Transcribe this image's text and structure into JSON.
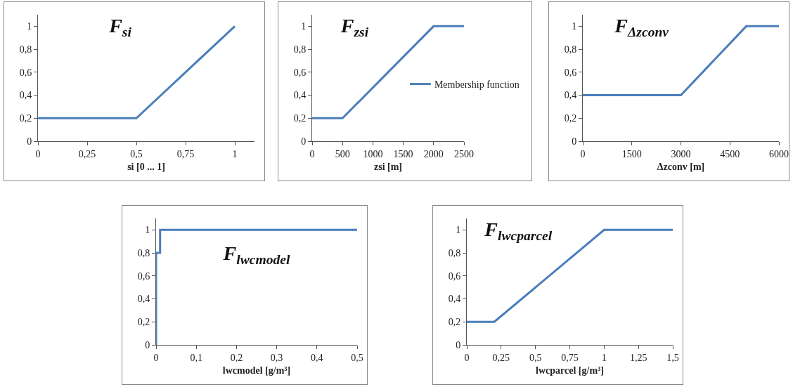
{
  "chart_data": [
    {
      "type": "line",
      "title": "F$_{si}$",
      "xlabel": "si [0 ... 1]",
      "x": [
        0,
        0.5,
        1
      ],
      "series": [
        {
          "color": "#4a7ebb",
          "values": [
            0.2,
            0.2,
            1
          ]
        }
      ],
      "xlim": [
        0,
        1.1
      ],
      "xticks": [
        {
          "value": 0,
          "label": "0"
        },
        {
          "value": 0.25,
          "label": "0,25"
        },
        {
          "value": 0.5,
          "label": "0,5"
        },
        {
          "value": 0.75,
          "label": "0,75"
        },
        {
          "value": 1,
          "label": "1"
        }
      ],
      "ylim": [
        0,
        1.1
      ],
      "yticks": [
        {
          "value": 0,
          "label": "0"
        },
        {
          "value": 0.2,
          "label": "0,2"
        },
        {
          "value": 0.4,
          "label": "0,4"
        },
        {
          "value": 0.6,
          "label": "0,6"
        },
        {
          "value": 0.8,
          "label": "0,8"
        },
        {
          "value": 1,
          "label": "1"
        }
      ],
      "grid": false,
      "legend": false
    },
    {
      "type": "line",
      "title": "F$_{zsi}$",
      "xlabel": "zsi [m]",
      "x": [
        0,
        500,
        2000,
        2500
      ],
      "series": [
        {
          "name": "Membership function",
          "color": "#4a7ebb",
          "values": [
            0.2,
            0.2,
            1,
            1
          ]
        }
      ],
      "xlim": [
        0,
        2500
      ],
      "xticks": [
        {
          "value": 0,
          "label": "0"
        },
        500,
        1000,
        1500,
        2000,
        2500
      ],
      "ylim": [
        0,
        1.1
      ],
      "yticks": [
        {
          "value": 0,
          "label": "0"
        },
        {
          "value": 0.2,
          "label": "0,2"
        },
        {
          "value": 0.4,
          "label": "0,4"
        },
        {
          "value": 0.6,
          "label": "0,6"
        },
        {
          "value": 0.8,
          "label": "0,8"
        },
        {
          "value": 1,
          "label": "1"
        }
      ],
      "grid": false,
      "legend": "right"
    },
    {
      "type": "line",
      "title": "F$_{Δzconv}$",
      "xlabel": "Δzconv [m]",
      "x": [
        0,
        3000,
        5000,
        6000
      ],
      "series": [
        {
          "color": "#4a7ebb",
          "values": [
            0.4,
            0.4,
            1,
            1
          ]
        }
      ],
      "xlim": [
        0,
        6000
      ],
      "xticks": [
        {
          "value": 0,
          "label": "0"
        },
        1500,
        3000,
        4500,
        6000
      ],
      "ylim": [
        0,
        1.1
      ],
      "yticks": [
        {
          "value": 0,
          "label": "0"
        },
        {
          "value": 0.2,
          "label": "0,2"
        },
        {
          "value": 0.4,
          "label": "0,4"
        },
        {
          "value": 0.6,
          "label": "0,6"
        },
        {
          "value": 0.8,
          "label": "0,8"
        },
        {
          "value": 1,
          "label": "1"
        }
      ],
      "grid": false,
      "legend": false
    },
    {
      "type": "line",
      "title": "F$_{lwcmodel}$",
      "xlabel": "lwcmodel [g/m³]",
      "x": [
        0,
        0,
        0.01,
        0.01,
        0.5
      ],
      "series": [
        {
          "color": "#4a7ebb",
          "values": [
            0,
            0.8,
            0.8,
            1,
            1
          ]
        }
      ],
      "xlim": [
        0,
        0.5
      ],
      "xticks": [
        {
          "value": 0,
          "label": "0"
        },
        {
          "value": 0.1,
          "label": "0,1"
        },
        {
          "value": 0.2,
          "label": "0,2"
        },
        {
          "value": 0.3,
          "label": "0,3"
        },
        {
          "value": 0.4,
          "label": "0,4"
        },
        {
          "value": 0.5,
          "label": "0,5"
        }
      ],
      "ylim": [
        0,
        1.1
      ],
      "yticks": [
        {
          "value": 0,
          "label": "0"
        },
        {
          "value": 0.2,
          "label": "0,2"
        },
        {
          "value": 0.4,
          "label": "0,4"
        },
        {
          "value": 0.6,
          "label": "0,6"
        },
        {
          "value": 0.8,
          "label": "0,8"
        },
        {
          "value": 1,
          "label": "1"
        }
      ],
      "grid": false,
      "legend": false
    },
    {
      "type": "line",
      "title": "F$_{lwcparcel}$",
      "xlabel": "lwcparcel [g/m³]",
      "x": [
        0,
        0.2,
        1,
        1.5
      ],
      "series": [
        {
          "color": "#4a7ebb",
          "values": [
            0.2,
            0.2,
            1,
            1
          ]
        }
      ],
      "xlim": [
        0,
        1.5
      ],
      "xticks": [
        {
          "value": 0,
          "label": "0"
        },
        {
          "value": 0.25,
          "label": "0,25"
        },
        {
          "value": 0.5,
          "label": "0,5"
        },
        {
          "value": 0.75,
          "label": "0,75"
        },
        {
          "value": 1,
          "label": "1"
        },
        {
          "value": 1.25,
          "label": "1,25"
        },
        {
          "value": 1.5,
          "label": "1,5"
        }
      ],
      "ylim": [
        0,
        1.1
      ],
      "yticks": [
        {
          "value": 0,
          "label": "0"
        },
        {
          "value": 0.2,
          "label": "0,2"
        },
        {
          "value": 0.4,
          "label": "0,4"
        },
        {
          "value": 0.6,
          "label": "0,6"
        },
        {
          "value": 0.8,
          "label": "0,8"
        },
        {
          "value": 1,
          "label": "1"
        }
      ],
      "grid": false,
      "legend": false
    }
  ]
}
